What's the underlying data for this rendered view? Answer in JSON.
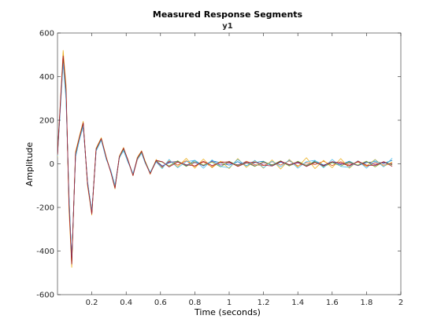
{
  "chart_data": {
    "type": "line",
    "title": "Measured Response Segments",
    "subtitle": "y1",
    "xlabel": "Time (seconds)",
    "ylabel": "Amplitude",
    "xlim": [
      0,
      2
    ],
    "ylim": [
      -600,
      600
    ],
    "xticks": [
      "0.2",
      "0.4",
      "0.6",
      "0.8",
      "1",
      "1.2",
      "1.4",
      "1.6",
      "1.8",
      "2"
    ],
    "yticks": [
      "-600",
      "-400",
      "-200",
      "0",
      "200",
      "400",
      "600"
    ],
    "grid": false,
    "legend": "none",
    "colors": [
      "#0072BD",
      "#D95319",
      "#EDB120",
      "#7E2F8E",
      "#77AC30",
      "#4DBEEE",
      "#A2142F"
    ],
    "series": [
      {
        "color": "#0072BD",
        "x": [
          0.0,
          0.033,
          0.05,
          0.067,
          0.083,
          0.105,
          0.13,
          0.15,
          0.175,
          0.2,
          0.225,
          0.255,
          0.285,
          0.31,
          0.335,
          0.36,
          0.385,
          0.41,
          0.44,
          0.465,
          0.49,
          0.51,
          0.54,
          0.575,
          0.61,
          0.65,
          0.7,
          0.75,
          0.8,
          0.85,
          0.9,
          0.95,
          1.0,
          1.05,
          1.1,
          1.15,
          1.2,
          1.25,
          1.3,
          1.35,
          1.4,
          1.45,
          1.5,
          1.55,
          1.6,
          1.65,
          1.7,
          1.75,
          1.8,
          1.85,
          1.9,
          1.95
        ],
        "values": [
          40,
          490,
          300,
          -150,
          -440,
          30,
          120,
          170,
          -80,
          -220,
          60,
          110,
          20,
          -30,
          -100,
          30,
          60,
          10,
          -45,
          25,
          55,
          10,
          -40,
          15,
          -10,
          5,
          12,
          -8,
          16,
          -10,
          14,
          5,
          -6,
          10,
          -8,
          6,
          12,
          -10,
          8,
          -5,
          10,
          -12,
          14,
          -6,
          8,
          -4,
          12,
          -8,
          6,
          10,
          2,
          16
        ]
      },
      {
        "color": "#D95319",
        "x": [
          0.0,
          0.033,
          0.05,
          0.067,
          0.083,
          0.105,
          0.13,
          0.15,
          0.175,
          0.2,
          0.225,
          0.255,
          0.285,
          0.31,
          0.335,
          0.36,
          0.385,
          0.41,
          0.44,
          0.465,
          0.49,
          0.51,
          0.54,
          0.575,
          0.61,
          0.65,
          0.7,
          0.75,
          0.8,
          0.85,
          0.9,
          0.95,
          1.0,
          1.05,
          1.1,
          1.15,
          1.2,
          1.25,
          1.3,
          1.35,
          1.4,
          1.45,
          1.5,
          1.55,
          1.6,
          1.65,
          1.7,
          1.75,
          1.8,
          1.85,
          1.9,
          1.95
        ],
        "values": [
          55,
          505,
          330,
          -190,
          -465,
          45,
          125,
          185,
          -95,
          -228,
          70,
          118,
          25,
          -38,
          -110,
          25,
          70,
          20,
          -52,
          18,
          50,
          6,
          -44,
          10,
          -16,
          12,
          -6,
          14,
          -12,
          8,
          -14,
          10,
          6,
          -10,
          12,
          -4,
          -8,
          10,
          -6,
          14,
          -10,
          6,
          -4,
          12,
          -8,
          10,
          -6,
          8,
          -12,
          4,
          -6,
          2
        ]
      },
      {
        "color": "#EDB120",
        "x": [
          0.0,
          0.033,
          0.05,
          0.067,
          0.083,
          0.105,
          0.13,
          0.15,
          0.175,
          0.2,
          0.225,
          0.255,
          0.285,
          0.31,
          0.335,
          0.36,
          0.385,
          0.41,
          0.44,
          0.465,
          0.49,
          0.51,
          0.54,
          0.575,
          0.61,
          0.65,
          0.7,
          0.75,
          0.8,
          0.85,
          0.9,
          0.95,
          1.0,
          1.05,
          1.1,
          1.15,
          1.2,
          1.25,
          1.3,
          1.35,
          1.4,
          1.45,
          1.5,
          1.55,
          1.6,
          1.65,
          1.7,
          1.75,
          1.8,
          1.85,
          1.9,
          1.95
        ],
        "values": [
          30,
          520,
          360,
          -210,
          -475,
          55,
          135,
          195,
          -100,
          -235,
          72,
          120,
          30,
          -35,
          -115,
          35,
          75,
          15,
          -55,
          30,
          60,
          15,
          -48,
          20,
          -20,
          18,
          -14,
          25,
          -20,
          22,
          -18,
          12,
          -22,
          24,
          -16,
          14,
          -20,
          18,
          -24,
          20,
          -14,
          28,
          -22,
          16,
          -18,
          24,
          -20,
          14,
          -10,
          20,
          -12,
          8
        ]
      },
      {
        "color": "#7E2F8E",
        "x": [
          0.0,
          0.033,
          0.05,
          0.067,
          0.083,
          0.105,
          0.13,
          0.15,
          0.175,
          0.2,
          0.225,
          0.255,
          0.285,
          0.31,
          0.335,
          0.36,
          0.385,
          0.41,
          0.44,
          0.465,
          0.49,
          0.51,
          0.54,
          0.575,
          0.61,
          0.65,
          0.7,
          0.75,
          0.8,
          0.85,
          0.9,
          0.95,
          1.0,
          1.05,
          1.1,
          1.15,
          1.2,
          1.25,
          1.3,
          1.35,
          1.4,
          1.45,
          1.5,
          1.55,
          1.6,
          1.65,
          1.7,
          1.75,
          1.8,
          1.85,
          1.9,
          1.95
        ],
        "values": [
          45,
          480,
          320,
          -170,
          -450,
          35,
          118,
          178,
          -88,
          -222,
          62,
          112,
          22,
          -32,
          -104,
          28,
          64,
          12,
          -48,
          22,
          52,
          8,
          -42,
          12,
          -12,
          8,
          10,
          -10,
          6,
          -8,
          12,
          -6,
          4,
          -4,
          8,
          -10,
          6,
          -4,
          10,
          -8,
          4,
          -6,
          8,
          -10,
          6,
          -2,
          4,
          -8,
          10,
          -4,
          6,
          -2
        ]
      },
      {
        "color": "#77AC30",
        "x": [
          0.0,
          0.033,
          0.05,
          0.067,
          0.083,
          0.105,
          0.13,
          0.15,
          0.175,
          0.2,
          0.225,
          0.255,
          0.285,
          0.31,
          0.335,
          0.36,
          0.385,
          0.41,
          0.44,
          0.465,
          0.49,
          0.51,
          0.54,
          0.575,
          0.61,
          0.65,
          0.7,
          0.75,
          0.8,
          0.85,
          0.9,
          0.95,
          1.0,
          1.05,
          1.1,
          1.15,
          1.2,
          1.25,
          1.3,
          1.35,
          1.4,
          1.45,
          1.5,
          1.55,
          1.6,
          1.65,
          1.7,
          1.75,
          1.8,
          1.85,
          1.9,
          1.95
        ],
        "values": [
          50,
          470,
          310,
          -160,
          -455,
          40,
          122,
          182,
          -90,
          -225,
          66,
          114,
          24,
          -34,
          -108,
          30,
          68,
          16,
          -50,
          24,
          54,
          12,
          -40,
          14,
          8,
          -10,
          14,
          -12,
          10,
          -6,
          8,
          -14,
          12,
          -8,
          6,
          -12,
          10,
          -6,
          14,
          -10,
          12,
          -8,
          10,
          -14,
          6,
          -10,
          8,
          -6,
          12,
          -14,
          10,
          -6
        ]
      },
      {
        "color": "#4DBEEE",
        "x": [
          0.0,
          0.033,
          0.05,
          0.067,
          0.083,
          0.105,
          0.13,
          0.15,
          0.175,
          0.2,
          0.225,
          0.255,
          0.285,
          0.31,
          0.335,
          0.36,
          0.385,
          0.41,
          0.44,
          0.465,
          0.49,
          0.51,
          0.54,
          0.575,
          0.61,
          0.65,
          0.7,
          0.75,
          0.8,
          0.85,
          0.9,
          0.95,
          1.0,
          1.05,
          1.1,
          1.15,
          1.2,
          1.25,
          1.3,
          1.35,
          1.4,
          1.45,
          1.5,
          1.55,
          1.6,
          1.65,
          1.7,
          1.75,
          1.8,
          1.85,
          1.9,
          1.95
        ],
        "values": [
          35,
          460,
          290,
          -140,
          -445,
          32,
          116,
          175,
          -85,
          -218,
          58,
          108,
          18,
          -28,
          -98,
          26,
          62,
          8,
          -44,
          20,
          48,
          4,
          -38,
          8,
          -22,
          20,
          -18,
          10,
          16,
          -20,
          18,
          -12,
          -18,
          20,
          -10,
          16,
          -18,
          12,
          -14,
          18,
          -20,
          10,
          16,
          -18,
          20,
          -12,
          -16,
          14,
          -20,
          18,
          -14,
          26
        ]
      },
      {
        "color": "#A2142F",
        "x": [
          0.0,
          0.033,
          0.05,
          0.067,
          0.083,
          0.105,
          0.13,
          0.15,
          0.175,
          0.2,
          0.225,
          0.255,
          0.285,
          0.31,
          0.335,
          0.36,
          0.385,
          0.41,
          0.44,
          0.465,
          0.49,
          0.51,
          0.54,
          0.575,
          0.61,
          0.65,
          0.7,
          0.75,
          0.8,
          0.85,
          0.9,
          0.95,
          1.0,
          1.05,
          1.1,
          1.15,
          1.2,
          1.25,
          1.3,
          1.35,
          1.4,
          1.45,
          1.5,
          1.55,
          1.6,
          1.65,
          1.7,
          1.75,
          1.8,
          1.85,
          1.9,
          1.95
        ],
        "values": [
          42,
          495,
          340,
          -180,
          -460,
          48,
          128,
          188,
          -92,
          -230,
          68,
          116,
          26,
          -36,
          -112,
          32,
          72,
          18,
          -54,
          26,
          58,
          10,
          -46,
          16,
          10,
          -14,
          8,
          -4,
          -10,
          12,
          -8,
          6,
          10,
          -12,
          4,
          8,
          -6,
          -10,
          12,
          -4,
          8,
          -12,
          6,
          -8,
          10,
          4,
          -10,
          12,
          -6,
          -8,
          10,
          -12
        ]
      }
    ]
  }
}
